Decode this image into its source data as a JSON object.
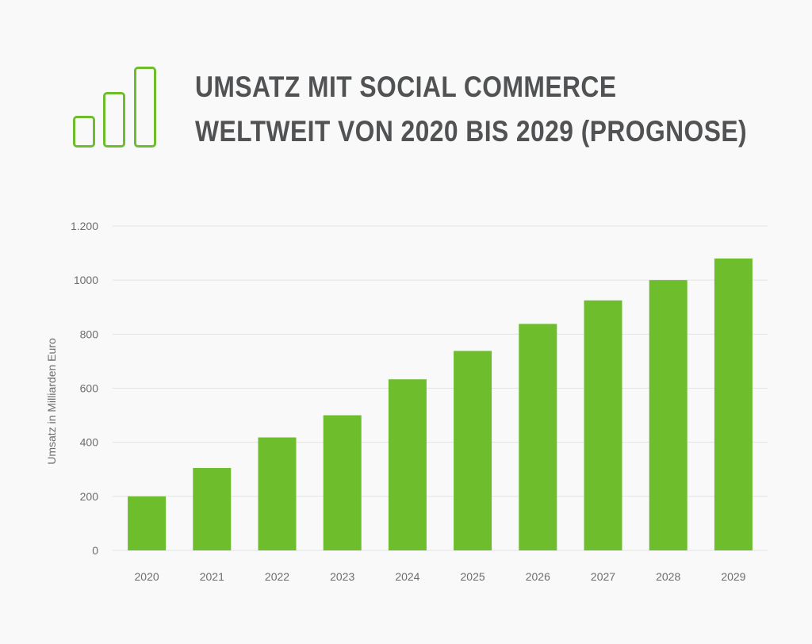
{
  "title": {
    "line1": "UMSATZ MIT SOCIAL COMMERCE",
    "line2": "WELTWEIT VON 2020 BIS 2029 (PROGNOSE)"
  },
  "logo": {
    "icon": "bar-chart-icon",
    "color": "#6dbd2d"
  },
  "chart_data": {
    "type": "bar",
    "title": "UMSATZ MIT SOCIAL COMMERCE WELTWEIT VON 2020 BIS 2029 (PROGNOSE)",
    "categories": [
      "2020",
      "2021",
      "2022",
      "2023",
      "2024",
      "2025",
      "2026",
      "2027",
      "2028",
      "2029"
    ],
    "values": [
      200,
      305,
      418,
      500,
      633,
      738,
      838,
      925,
      1000,
      1080
    ],
    "xlabel": "",
    "ylabel": "Umsatz in Milliarden Euro",
    "ylim": [
      0,
      1200
    ],
    "yticks": [
      0,
      200,
      400,
      600,
      800,
      1000,
      1200
    ],
    "ytick_labels": [
      "0",
      "200",
      "400",
      "600",
      "800",
      "1000",
      "1.200"
    ],
    "grid": true,
    "legend": "none",
    "bar_color": "#6dbd2d"
  }
}
